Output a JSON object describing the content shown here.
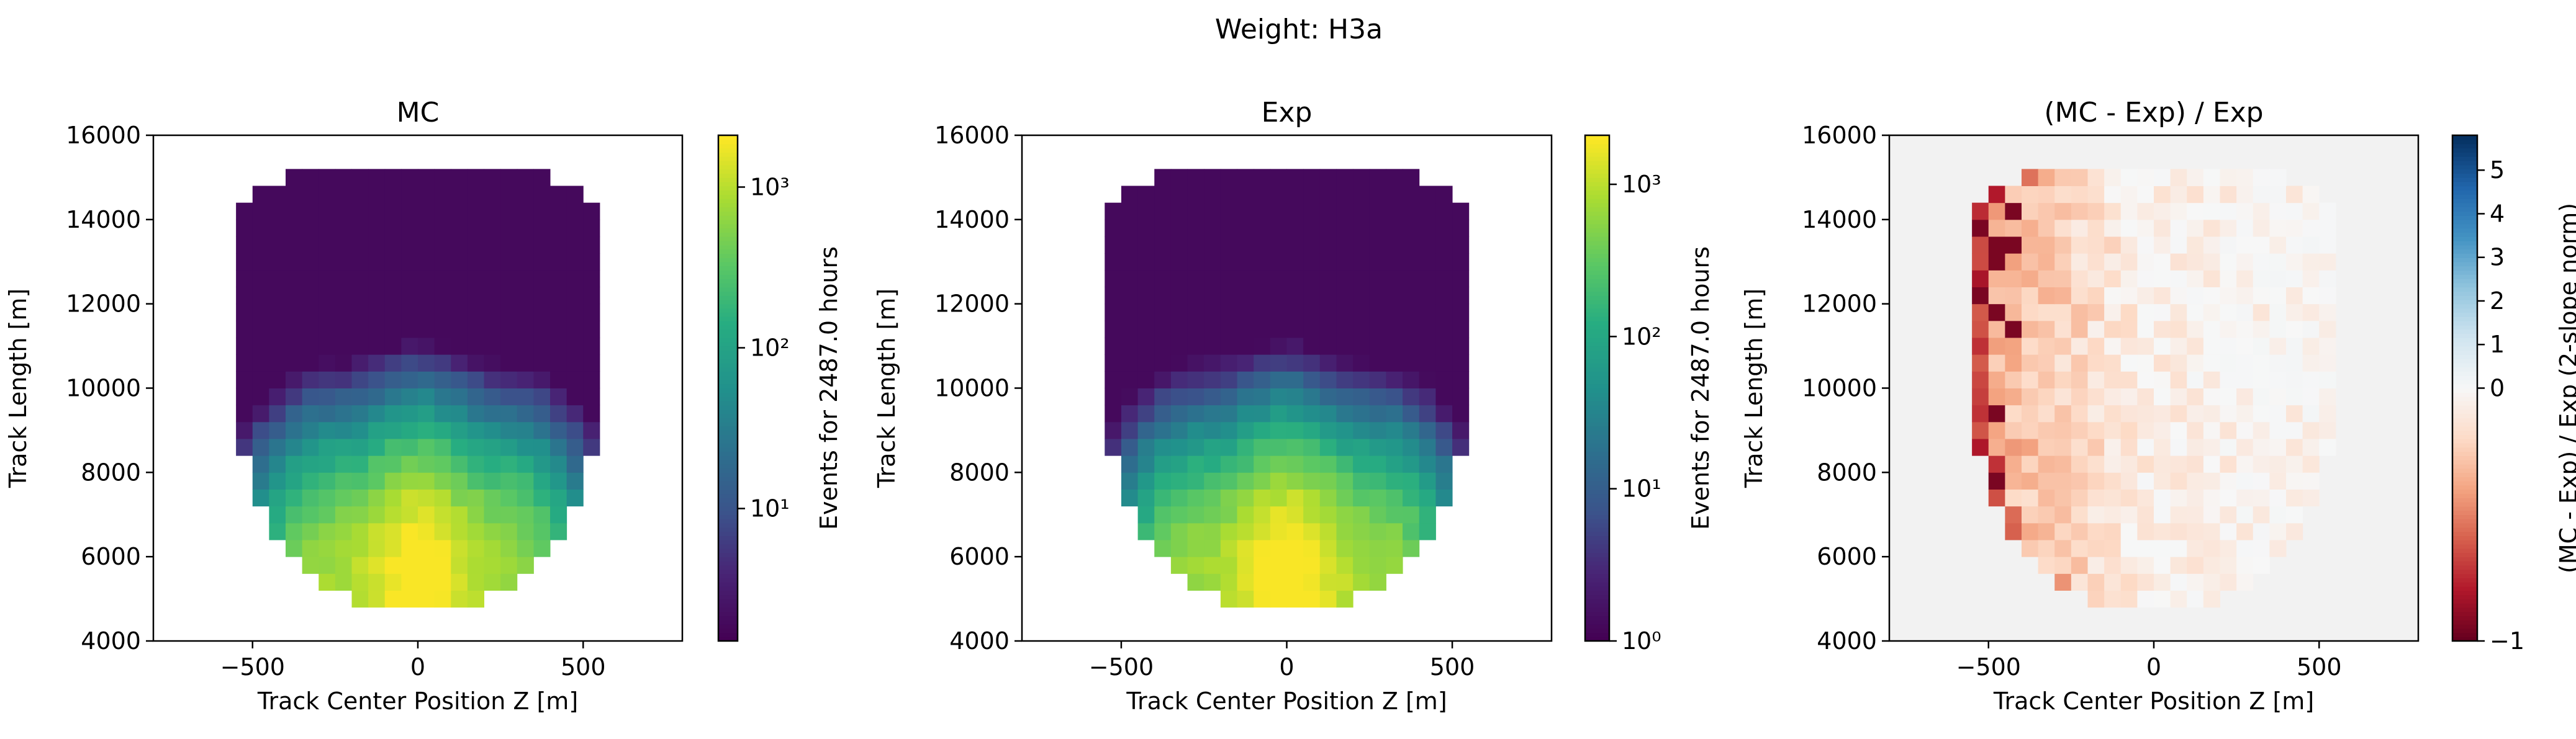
{
  "suptitle": "Weight: H3a",
  "chart_data": [
    {
      "type": "heatmap",
      "title": "MC",
      "xlabel": "Track Center Position Z [m]",
      "ylabel": "Track Length [m]",
      "xlim": [
        -800,
        800
      ],
      "ylim": [
        4000,
        16000
      ],
      "xticks": [
        "−500",
        "0",
        "500"
      ],
      "yticks": [
        "4000",
        "6000",
        "8000",
        "10000",
        "12000",
        "14000",
        "16000"
      ],
      "bin_width_x": 50,
      "bin_height_y": 400,
      "colorbar": {
        "label": "Events for 2487.0 hours",
        "scale": "log",
        "range": [
          1.5,
          2100
        ],
        "ticks": [
          "10¹",
          "10²",
          "10³"
        ],
        "colormap": "viridis"
      },
      "mask": "approximate; values estimated from colors"
    },
    {
      "type": "heatmap",
      "title": "Exp",
      "xlabel": "Track Center Position Z [m]",
      "ylabel": "Track Length [m]",
      "xlim": [
        -800,
        800
      ],
      "ylim": [
        4000,
        16000
      ],
      "xticks": [
        "−500",
        "0",
        "500"
      ],
      "yticks": [
        "4000",
        "6000",
        "8000",
        "10000",
        "12000",
        "14000",
        "16000"
      ],
      "bin_width_x": 50,
      "bin_height_y": 400,
      "colorbar": {
        "label": "Events for 2487.0 hours",
        "scale": "log",
        "range": [
          1,
          2100
        ],
        "ticks": [
          "10⁰",
          "10¹",
          "10²",
          "10³"
        ],
        "colormap": "viridis"
      }
    },
    {
      "type": "heatmap",
      "title": "(MC - Exp) / Exp",
      "xlabel": "Track Center Position Z [m]",
      "ylabel": "Track Length [m]",
      "xlim": [
        -800,
        800
      ],
      "ylim": [
        4000,
        16000
      ],
      "xticks": [
        "−500",
        "0",
        "500"
      ],
      "yticks": [
        "4000",
        "6000",
        "8000",
        "10000",
        "12000",
        "14000",
        "16000"
      ],
      "background": "#f2f2f2",
      "colorbar": {
        "label": "(MC - Exp) / Exp (2-slope norm)",
        "scale": "two-slope",
        "vmin": -1,
        "vcenter": 0,
        "vmax": 5.8,
        "ticks": [
          "−1",
          "0",
          "1",
          "2",
          "3",
          "4",
          "5"
        ],
        "colormap": "RdBu"
      }
    }
  ]
}
